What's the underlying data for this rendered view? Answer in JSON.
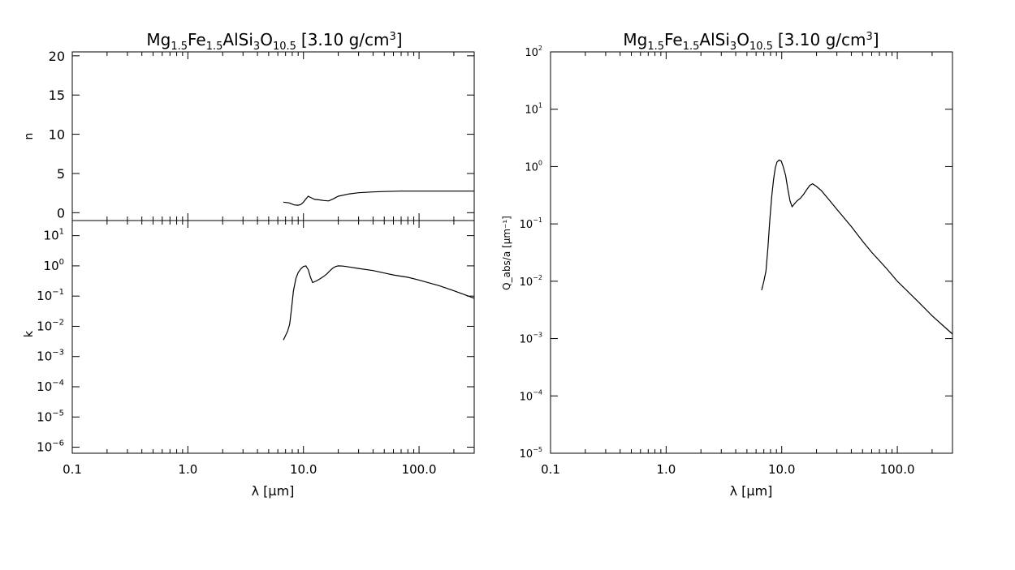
{
  "chart_data": [
    {
      "id": "n",
      "type": "line",
      "title": {
        "base": "Mg",
        "s1": "1.5",
        "fe": "Fe",
        "s2": "1.5",
        "alsi": "AlSi",
        "s3": "3",
        "o": "O",
        "s4": "10.5",
        "rest": "[3.10 g/cm",
        "sup": "3",
        "close": "]"
      },
      "xlabel": "",
      "ylabel": "n",
      "xscale": "log",
      "yscale": "linear",
      "xlim": [
        0.1,
        300
      ],
      "ylim": [
        -1,
        20.5
      ],
      "x_tick_values": [
        0.1,
        1,
        10,
        100
      ],
      "x_tick_labels": [
        "",
        "",
        "",
        ""
      ],
      "y_tick_values": [
        0,
        5,
        10,
        15,
        20
      ],
      "y_tick_labels": [
        "0",
        "5",
        "10",
        "15",
        "20"
      ],
      "series": [
        {
          "x": [
            6.7,
            7.5,
            8.3,
            9.0,
            9.5,
            10.0,
            10.5,
            11.0,
            11.5,
            12.5,
            13.5,
            15.0,
            16.5,
            18.0,
            20,
            25,
            30,
            40,
            50,
            70,
            100,
            150,
            200,
            300
          ],
          "y": [
            1.35,
            1.25,
            1.0,
            0.95,
            1.05,
            1.35,
            1.75,
            2.1,
            1.95,
            1.7,
            1.65,
            1.55,
            1.5,
            1.75,
            2.1,
            2.4,
            2.55,
            2.65,
            2.7,
            2.75,
            2.75,
            2.75,
            2.75,
            2.75
          ]
        }
      ]
    },
    {
      "id": "k",
      "type": "line",
      "title": "",
      "xlabel": "λ [μm]",
      "ylabel": "k",
      "xscale": "log",
      "yscale": "log",
      "xlim": [
        0.1,
        300
      ],
      "ylim_log10": [
        -6.2,
        1.5
      ],
      "x_tick_values": [
        0.1,
        1,
        10,
        100
      ],
      "x_tick_labels": [
        "0.1",
        "1.0",
        "10.0",
        "100.0"
      ],
      "y_tick_exponents": [
        -6,
        -5,
        -4,
        -3,
        -2,
        -1,
        0,
        1
      ],
      "series": [
        {
          "x": [
            6.7,
            7.0,
            7.3,
            7.6,
            7.9,
            8.2,
            8.6,
            9.0,
            9.5,
            10.0,
            10.5,
            11.0,
            11.5,
            12.0,
            13.0,
            14.0,
            15.0,
            16.0,
            17.0,
            18.0,
            19.0,
            20,
            22,
            25,
            30,
            40,
            50,
            60,
            80,
            100,
            150,
            200,
            300
          ],
          "y": [
            0.0035,
            0.005,
            0.007,
            0.012,
            0.04,
            0.15,
            0.38,
            0.6,
            0.8,
            0.95,
            1.0,
            0.75,
            0.42,
            0.28,
            0.32,
            0.38,
            0.45,
            0.55,
            0.7,
            0.85,
            0.95,
            1.0,
            0.98,
            0.92,
            0.82,
            0.7,
            0.58,
            0.5,
            0.42,
            0.34,
            0.22,
            0.15,
            0.085
          ]
        }
      ]
    },
    {
      "id": "qabs",
      "type": "line",
      "title": {
        "base": "Mg",
        "s1": "1.5",
        "fe": "Fe",
        "s2": "1.5",
        "alsi": "AlSi",
        "s3": "3",
        "o": "O",
        "s4": "10.5",
        "rest": "[3.10 g/cm",
        "sup": "3",
        "close": "]"
      },
      "xlabel": "λ [μm]",
      "ylabel": "Q_abs/a [μm⁻¹]",
      "xscale": "log",
      "yscale": "log",
      "xlim": [
        0.1,
        300
      ],
      "ylim_log10": [
        -5,
        2
      ],
      "x_tick_values": [
        0.1,
        1,
        10,
        100
      ],
      "x_tick_labels": [
        "0.1",
        "1.0",
        "10.0",
        "100.0"
      ],
      "y_tick_exponents": [
        -5,
        -4,
        -3,
        -2,
        -1,
        0,
        1,
        2
      ],
      "series": [
        {
          "x": [
            6.7,
            7.0,
            7.3,
            7.6,
            7.9,
            8.2,
            8.5,
            8.8,
            9.1,
            9.5,
            9.9,
            10.3,
            10.8,
            11.3,
            11.8,
            12.3,
            12.8,
            13.5,
            14.5,
            15.5,
            16.5,
            17.5,
            18.5,
            20,
            22,
            25,
            30,
            40,
            50,
            60,
            80,
            100,
            150,
            200,
            300
          ],
          "y": [
            0.007,
            0.01,
            0.015,
            0.04,
            0.12,
            0.3,
            0.6,
            0.95,
            1.2,
            1.3,
            1.25,
            1.0,
            0.7,
            0.4,
            0.25,
            0.2,
            0.22,
            0.25,
            0.28,
            0.33,
            0.4,
            0.47,
            0.5,
            0.45,
            0.38,
            0.28,
            0.18,
            0.09,
            0.05,
            0.032,
            0.017,
            0.01,
            0.0045,
            0.0025,
            0.0012
          ]
        }
      ]
    }
  ]
}
